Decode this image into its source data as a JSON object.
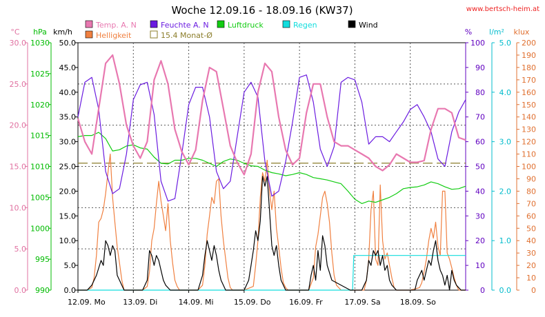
{
  "chart_data": {
    "type": "line",
    "title": "Woche 12.09.16 - 18.09.16 (KW37)",
    "source": "www.bertsch-heim.at",
    "x_days": [
      "12.09.",
      "13.09.",
      "14.09.",
      "15.09.",
      "16.09.",
      "17.09.",
      "18.09."
    ],
    "x_weekdays": [
      "Mo",
      "Di",
      "Mi",
      "Do",
      "Fr",
      "Sa",
      "So"
    ],
    "x_range_hours": [
      0,
      168
    ],
    "axes": [
      {
        "id": "temp",
        "unit": "°C",
        "side": "left",
        "min": 0,
        "max": 30,
        "ticks": [
          0.0,
          5.0,
          10.0,
          15.0,
          20.0,
          25.0,
          30.0
        ],
        "color": "#e070a0",
        "fmt": 1
      },
      {
        "id": "press",
        "unit": "hPa",
        "side": "left",
        "min": 990,
        "max": 1030,
        "ticks": [
          990,
          995,
          1000,
          1005,
          1010,
          1015,
          1020,
          1025,
          1030
        ],
        "color": "#00bb00",
        "fmt": 0
      },
      {
        "id": "wind",
        "unit": "km/h",
        "side": "left",
        "min": 0,
        "max": 50,
        "ticks": [
          0.0,
          5.0,
          10.0,
          15.0,
          20.0,
          25.0,
          30.0,
          35.0,
          40.0,
          45.0,
          50.0
        ],
        "color": "#000000",
        "fmt": 1
      },
      {
        "id": "hum",
        "unit": "%",
        "side": "right",
        "min": 0,
        "max": 100,
        "ticks": [
          0,
          10,
          20,
          30,
          40,
          50,
          60,
          70,
          80,
          90,
          100
        ],
        "color": "#6000c0",
        "fmt": 0
      },
      {
        "id": "rain",
        "unit": "l/m²",
        "side": "right",
        "min": 0,
        "max": 5,
        "ticks": [
          0.0,
          1.0,
          2.0,
          3.0,
          4.0,
          5.0
        ],
        "color": "#00bbcc",
        "fmt": 1
      },
      {
        "id": "lux",
        "unit": "klux",
        "side": "right",
        "min": 0,
        "max": 200,
        "ticks": [
          0,
          10,
          20,
          30,
          40,
          50,
          60,
          70,
          80,
          90,
          100,
          110,
          120,
          130,
          140,
          150,
          160,
          170,
          180,
          190,
          200
        ],
        "color": "#e07030",
        "fmt": 0
      }
    ],
    "legend": [
      {
        "label": "Temp. A. N",
        "color": "#e878b0",
        "type": "fill"
      },
      {
        "label": "Feuchte A. N",
        "color": "#6a1be0",
        "type": "fill"
      },
      {
        "label": "Luftdruck",
        "color": "#11cc11",
        "type": "fill"
      },
      {
        "label": "Regen",
        "color": "#11dddd",
        "type": "fill"
      },
      {
        "label": "Wind",
        "color": "#000000",
        "type": "fill"
      },
      {
        "label": "Helligkeit",
        "color": "#f08040",
        "type": "fill"
      },
      {
        "label": "15.4 Monat-Ø",
        "color": "#8b7d2a",
        "type": "outline"
      }
    ],
    "series": [
      {
        "name": "Temp. A. N",
        "axis": "temp",
        "color": "#e878b0",
        "x": [
          0,
          3,
          6,
          9,
          12,
          15,
          18,
          21,
          24,
          27,
          30,
          33,
          36,
          39,
          42,
          45,
          48,
          51,
          54,
          57,
          60,
          63,
          66,
          69,
          72,
          75,
          78,
          81,
          84,
          87,
          90,
          93,
          96,
          99,
          102,
          105,
          108,
          111,
          114,
          117,
          120,
          123,
          126,
          129,
          132,
          135,
          138,
          141,
          144,
          147,
          150,
          153,
          156,
          159,
          162,
          165,
          168
        ],
        "values": [
          20.8,
          18.0,
          16.5,
          22.0,
          27.5,
          28.5,
          25.0,
          20.0,
          17.5,
          16.0,
          18.0,
          25.5,
          27.8,
          25.0,
          19.5,
          16.8,
          15.2,
          17.0,
          23.0,
          27.0,
          26.5,
          22.0,
          17.5,
          15.5,
          14.0,
          16.5,
          24.0,
          27.5,
          26.5,
          21.0,
          17.0,
          15.2,
          16.0,
          21.5,
          25.0,
          25.0,
          21.0,
          18.0,
          17.5,
          17.5,
          17.0,
          16.5,
          16.0,
          15.0,
          14.5,
          15.2,
          16.5,
          16.0,
          15.5,
          15.5,
          15.7,
          19.5,
          22.0,
          22.0,
          21.5,
          18.5,
          18.2
        ]
      },
      {
        "name": "Feuchte A. N",
        "axis": "hum",
        "color": "#6a1be0",
        "x": [
          0,
          3,
          6,
          9,
          12,
          15,
          18,
          21,
          24,
          27,
          30,
          33,
          36,
          39,
          42,
          45,
          48,
          51,
          54,
          57,
          60,
          63,
          66,
          69,
          72,
          75,
          78,
          81,
          84,
          87,
          90,
          93,
          96,
          99,
          102,
          105,
          108,
          111,
          114,
          117,
          120,
          123,
          126,
          129,
          132,
          135,
          138,
          141,
          144,
          147,
          150,
          153,
          156,
          159,
          162,
          165,
          168
        ],
        "values": [
          70,
          84,
          86,
          73,
          48,
          39,
          41,
          55,
          77,
          83,
          84,
          71,
          44,
          36,
          37,
          55,
          75,
          82,
          82,
          70,
          48,
          41,
          44,
          62,
          80,
          84,
          78,
          52,
          38,
          40,
          52,
          68,
          86,
          87,
          76,
          57,
          50,
          58,
          84,
          86,
          85,
          76,
          59,
          62,
          62,
          60,
          64,
          68,
          73,
          75,
          70,
          64,
          53,
          50,
          64,
          72,
          77
        ]
      },
      {
        "name": "Luftdruck",
        "axis": "press",
        "color": "#11cc11",
        "x": [
          0,
          3,
          6,
          9,
          12,
          15,
          18,
          21,
          24,
          27,
          30,
          33,
          36,
          39,
          42,
          45,
          48,
          51,
          54,
          57,
          60,
          63,
          66,
          69,
          72,
          75,
          78,
          81,
          84,
          87,
          90,
          93,
          96,
          99,
          102,
          105,
          108,
          111,
          114,
          117,
          120,
          123,
          126,
          129,
          132,
          135,
          138,
          141,
          144,
          147,
          150,
          153,
          156,
          159,
          162,
          165,
          168
        ],
        "values": [
          1014.8,
          1015.0,
          1015.0,
          1015.5,
          1014.5,
          1012.5,
          1012.7,
          1013.3,
          1013.5,
          1013.0,
          1012.8,
          1011.5,
          1010.5,
          1010.4,
          1011.0,
          1011.0,
          1011.3,
          1011.3,
          1011.0,
          1010.5,
          1010.0,
          1010.8,
          1011.2,
          1011.0,
          1010.5,
          1010.1,
          1010.0,
          1009.4,
          1009.0,
          1008.8,
          1008.5,
          1008.7,
          1009.0,
          1008.7,
          1008.2,
          1008.0,
          1007.8,
          1007.5,
          1007.2,
          1006.0,
          1004.7,
          1004.0,
          1004.4,
          1004.2,
          1004.6,
          1005.0,
          1005.6,
          1006.4,
          1006.6,
          1006.7,
          1007.0,
          1007.5,
          1007.2,
          1006.7,
          1006.3,
          1006.4,
          1006.8
        ]
      },
      {
        "name": "Wind",
        "axis": "wind",
        "color": "#000000",
        "x": [
          0,
          4,
          6,
          8,
          10,
          11,
          12,
          13,
          14,
          15,
          16,
          17,
          18,
          20,
          24,
          28,
          30,
          31,
          32,
          33,
          34,
          35,
          36,
          37,
          38,
          40,
          48,
          52,
          54,
          55,
          56,
          57,
          58,
          59,
          60,
          61,
          62,
          64,
          70,
          72,
          74,
          75,
          76,
          77,
          78,
          79,
          80,
          81,
          82,
          83,
          84,
          85,
          86,
          87,
          88,
          90,
          96,
          100,
          101,
          102,
          103,
          104,
          105,
          106,
          107,
          108,
          110,
          118,
          120,
          123,
          124,
          125,
          126,
          127,
          128,
          129,
          130,
          131,
          132,
          133,
          134,
          135,
          136,
          138,
          140,
          144,
          146,
          147,
          148,
          149,
          150,
          151,
          152,
          153,
          154,
          155,
          156,
          157,
          158,
          159,
          160,
          161,
          162,
          163,
          164,
          166,
          168
        ],
        "values": [
          0,
          0,
          1,
          3,
          6,
          5,
          10,
          9,
          7,
          9,
          8,
          3,
          2,
          0,
          0,
          0,
          2,
          8,
          7,
          5,
          7,
          6,
          4,
          2,
          1,
          0,
          0,
          0,
          3,
          7,
          10,
          8,
          6,
          9,
          7,
          4,
          2,
          0,
          0,
          0,
          2,
          5,
          8,
          12,
          10,
          14,
          23,
          21,
          23,
          16,
          9,
          7,
          9,
          5,
          2,
          0,
          0,
          0,
          3,
          5,
          2,
          8,
          4,
          11,
          9,
          5,
          2,
          0,
          0,
          0,
          1,
          2,
          6,
          5,
          8,
          7,
          8,
          5,
          7,
          4,
          5,
          2,
          1,
          0,
          0,
          0,
          0,
          2,
          3,
          4,
          2,
          4,
          6,
          5,
          8,
          10,
          6,
          4,
          3,
          1,
          3,
          0,
          4,
          2,
          1,
          0,
          0
        ]
      },
      {
        "name": "Regen",
        "axis": "rain",
        "color": "#11dddd",
        "x": [
          0,
          119,
          119.5,
          168
        ],
        "values": [
          0,
          0,
          0.7,
          0.7
        ]
      },
      {
        "name": "Helligkeit",
        "axis": "lux",
        "color": "#f08040",
        "x": [
          0,
          4,
          6,
          7,
          8,
          9,
          10,
          11,
          12,
          13,
          14,
          15,
          16,
          17,
          18,
          19,
          20,
          24,
          28,
          30,
          31,
          32,
          33,
          34,
          35,
          36,
          37,
          38,
          39,
          40,
          41,
          42,
          43,
          44,
          48,
          52,
          54,
          55,
          56,
          57,
          58,
          59,
          60,
          61,
          62,
          63,
          64,
          65,
          66,
          67,
          68,
          72,
          76,
          77,
          78,
          79,
          80,
          81,
          82,
          83,
          84,
          85,
          86,
          87,
          88,
          89,
          90,
          91,
          92,
          96,
          100,
          101,
          102,
          103,
          104,
          105,
          106,
          107,
          108,
          109,
          110,
          111,
          112,
          113,
          114,
          115,
          116,
          120,
          124,
          125,
          126,
          127,
          128,
          129,
          130,
          131,
          132,
          133,
          134,
          135,
          136,
          137,
          138,
          139,
          140,
          144,
          148,
          149,
          150,
          151,
          152,
          153,
          154,
          155,
          156,
          157,
          158,
          159,
          160,
          161,
          162,
          163,
          164,
          165,
          168
        ],
        "values": [
          0,
          0,
          2,
          10,
          28,
          55,
          58,
          65,
          78,
          95,
          110,
          75,
          55,
          35,
          22,
          8,
          0,
          0,
          0,
          3,
          15,
          40,
          50,
          70,
          88,
          72,
          60,
          48,
          70,
          40,
          22,
          8,
          3,
          0,
          0,
          0,
          4,
          20,
          45,
          60,
          75,
          70,
          88,
          90,
          60,
          40,
          25,
          10,
          2,
          0,
          0,
          0,
          3,
          20,
          40,
          75,
          95,
          88,
          105,
          80,
          65,
          80,
          50,
          35,
          18,
          6,
          2,
          0,
          0,
          0,
          0,
          5,
          10,
          35,
          45,
          60,
          75,
          80,
          70,
          55,
          30,
          12,
          4,
          2,
          0,
          0,
          0,
          0,
          0,
          8,
          25,
          65,
          80,
          25,
          20,
          85,
          40,
          25,
          30,
          20,
          10,
          2,
          0,
          0,
          0,
          0,
          2,
          6,
          15,
          25,
          40,
          50,
          42,
          55,
          35,
          28,
          80,
          80,
          30,
          25,
          18,
          10,
          4,
          0,
          0
        ]
      }
    ],
    "reference_lines": [
      {
        "label": "15.4 Monat-Ø",
        "axis": "temp",
        "value": 15.4,
        "color": "#8b7d2a",
        "style": "dashed"
      }
    ],
    "grid": true
  }
}
